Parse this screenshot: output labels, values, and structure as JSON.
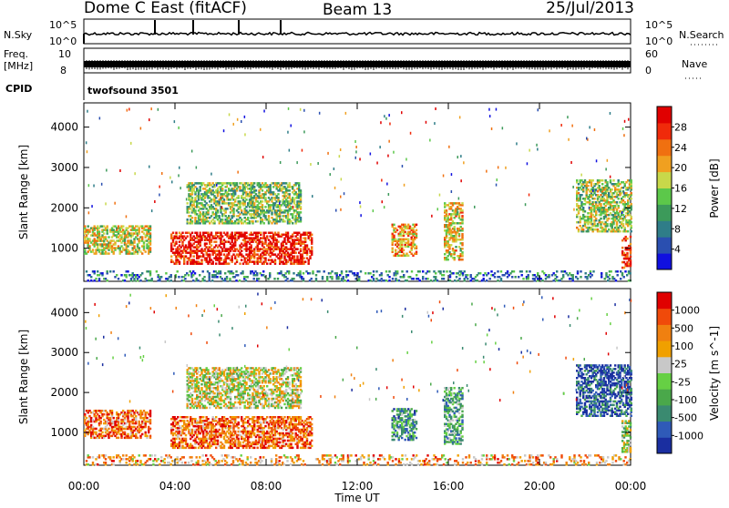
{
  "header": {
    "station": "Dome C East (fitACF)",
    "beam": "Beam 13",
    "date": "25/Jul/2013"
  },
  "status_strips": {
    "nsky_label": "N.Sky",
    "nsky_ticks": [
      "10^5",
      "10^0"
    ],
    "nsearch_label": "N.Search",
    "nsearch_ticks": [
      "10^5",
      "10^0"
    ],
    "freq_label": "Freq.",
    "freq_unit": "[MHz]",
    "freq_ticks": [
      "10",
      "8"
    ],
    "nave_label": "Nave",
    "nave_ticks": [
      "60",
      "0"
    ],
    "cpid_label": "CPID",
    "cpid_value": "twofsound 3501"
  },
  "colors": {
    "power": [
      "#1010e0",
      "#2a4fb0",
      "#2f7d88",
      "#3c9a5a",
      "#5cc84a",
      "#c8d84a",
      "#f0a020",
      "#f07010",
      "#f02a0a",
      "#e00000"
    ],
    "velocity": [
      "#1a2ea0",
      "#2f5ab8",
      "#3a8a70",
      "#4aa84a",
      "#66d044",
      "#c8c8c8",
      "#f0a000",
      "#f08010",
      "#f04a0a",
      "#e00000"
    ]
  },
  "chart_data": [
    {
      "type": "heatmap",
      "name": "power-panel",
      "ylabel": "Slant Range [km]",
      "xlabel": "Time UT",
      "x_ticks": [
        "00:00",
        "04:00",
        "08:00",
        "12:00",
        "16:00",
        "20:00",
        "00:00"
      ],
      "xlim_hours": [
        0,
        24
      ],
      "ylim_km": [
        180,
        4600
      ],
      "y_ticks": [
        1000,
        2000,
        3000,
        4000
      ],
      "colorbar": {
        "title": "Power",
        "unit": "[dB]",
        "ticks": [
          "28",
          "24",
          "20",
          "16",
          "12",
          "8",
          "4"
        ],
        "range": [
          0,
          30
        ]
      },
      "regions": [
        {
          "t0": 0.0,
          "t1": 2.9,
          "r0": 850,
          "r1": 1550,
          "level": 0.55
        },
        {
          "t0": 3.8,
          "t1": 10.0,
          "r0": 600,
          "r1": 1400,
          "level": 0.9
        },
        {
          "t0": 4.5,
          "t1": 9.5,
          "r0": 1600,
          "r1": 2600,
          "level": 0.45
        },
        {
          "t0": 13.5,
          "t1": 14.6,
          "r0": 800,
          "r1": 1600,
          "level": 0.7
        },
        {
          "t0": 15.8,
          "t1": 16.6,
          "r0": 700,
          "r1": 2100,
          "level": 0.6
        },
        {
          "t0": 21.6,
          "t1": 24.0,
          "r0": 1400,
          "r1": 2700,
          "level": 0.5
        },
        {
          "t0": 23.6,
          "t1": 24.0,
          "r0": 500,
          "r1": 1300,
          "level": 0.85
        },
        {
          "t0": 0.0,
          "t1": 24.0,
          "r0": 180,
          "r1": 420,
          "level": 0.25
        }
      ]
    },
    {
      "type": "heatmap",
      "name": "velocity-panel",
      "ylabel": "Slant Range [km]",
      "xlabel": "Time UT",
      "x_ticks": [
        "00:00",
        "04:00",
        "08:00",
        "12:00",
        "16:00",
        "20:00",
        "00:00"
      ],
      "xlim_hours": [
        0,
        24
      ],
      "ylim_km": [
        180,
        4600
      ],
      "y_ticks": [
        1000,
        2000,
        3000,
        4000
      ],
      "colorbar": {
        "title": "Velocity",
        "unit": "[m s^-1]",
        "ticks": [
          "1000",
          "500",
          "100",
          "25",
          "-25",
          "-100",
          "-500",
          "-1000"
        ],
        "range": [
          -1000,
          1000
        ]
      },
      "regions": [
        {
          "t0": 0.0,
          "t1": 2.9,
          "r0": 850,
          "r1": 1550,
          "level": 0.78
        },
        {
          "t0": 3.8,
          "t1": 10.0,
          "r0": 600,
          "r1": 1400,
          "level": 0.8
        },
        {
          "t0": 4.5,
          "t1": 9.5,
          "r0": 1600,
          "r1": 2600,
          "level": 0.55
        },
        {
          "t0": 13.5,
          "t1": 14.6,
          "r0": 800,
          "r1": 1600,
          "level": 0.3
        },
        {
          "t0": 15.8,
          "t1": 16.6,
          "r0": 700,
          "r1": 2100,
          "level": 0.35
        },
        {
          "t0": 21.6,
          "t1": 24.0,
          "r0": 1400,
          "r1": 2700,
          "level": 0.12
        },
        {
          "t0": 23.6,
          "t1": 24.0,
          "r0": 500,
          "r1": 1300,
          "level": 0.45
        },
        {
          "t0": 0.0,
          "t1": 24.0,
          "r0": 180,
          "r1": 420,
          "level": 0.7
        }
      ]
    }
  ]
}
